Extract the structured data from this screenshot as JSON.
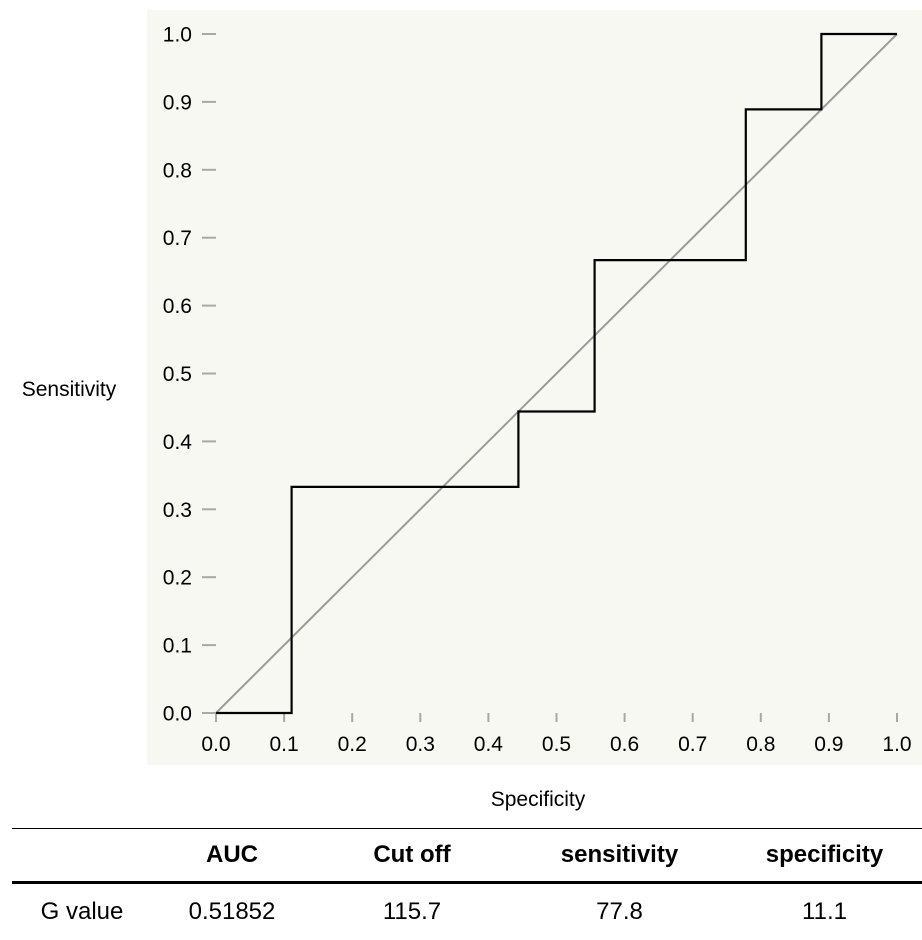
{
  "chart_data": {
    "type": "line",
    "title": "",
    "xlabel": "Specificity",
    "ylabel": "Sensitivity",
    "xlim": [
      0,
      1
    ],
    "ylim": [
      0,
      1
    ],
    "x_ticks": [
      "0.0",
      "0.1",
      "0.2",
      "0.3",
      "0.4",
      "0.5",
      "0.6",
      "0.7",
      "0.8",
      "0.9",
      "1.0"
    ],
    "y_ticks": [
      "0.0",
      "0.1",
      "0.2",
      "0.3",
      "0.4",
      "0.5",
      "0.6",
      "0.7",
      "0.8",
      "0.9",
      "1.0"
    ],
    "grid": false,
    "colors": {
      "background": "#f7f8f1",
      "roc_curve": "#000000",
      "reference_line": "#9a9a9a"
    },
    "series": [
      {
        "type": "step",
        "x": [
          0.0,
          0.111,
          0.111,
          0.444,
          0.444,
          0.556,
          0.556,
          0.778,
          0.778,
          0.889,
          0.889,
          1.0
        ],
        "y": [
          0.0,
          0.0,
          0.333,
          0.333,
          0.444,
          0.444,
          0.667,
          0.667,
          0.889,
          0.889,
          1.0,
          1.0
        ]
      },
      {
        "type": "reference",
        "x": [
          0,
          1
        ],
        "y": [
          0,
          1
        ]
      }
    ]
  },
  "table": {
    "headers": [
      "",
      "AUC",
      "Cut off",
      "sensitivity",
      "specificity"
    ],
    "rows": [
      [
        "G value",
        "0.51852",
        "115.7",
        "77.8",
        "11.1"
      ]
    ]
  }
}
